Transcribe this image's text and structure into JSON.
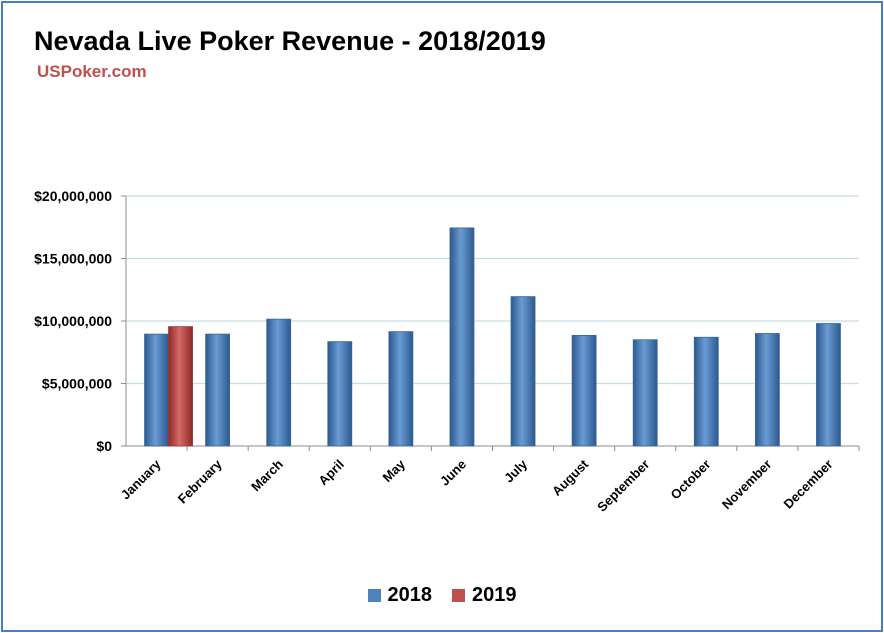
{
  "chart_data": {
    "type": "bar",
    "title": "Nevada Live Poker Revenue - 2018/2019",
    "subtitle": "USPoker.com",
    "xlabel": "",
    "ylabel": "",
    "categories": [
      "January",
      "February",
      "March",
      "April",
      "May",
      "June",
      "July",
      "August",
      "September",
      "October",
      "November",
      "December"
    ],
    "series": [
      {
        "name": "2018",
        "color": "#4f81bd",
        "values": [
          8950000,
          8950000,
          10150000,
          8350000,
          9150000,
          17450000,
          11950000,
          8850000,
          8500000,
          8700000,
          9000000,
          9800000
        ]
      },
      {
        "name": "2019",
        "color": "#c0504d",
        "values": [
          9550000,
          null,
          null,
          null,
          null,
          null,
          null,
          null,
          null,
          null,
          null,
          null
        ]
      }
    ],
    "ylim": [
      0,
      20000000
    ],
    "yticks": [
      0,
      5000000,
      10000000,
      15000000,
      20000000
    ],
    "ytick_labels": [
      "$0",
      "$5,000,000",
      "$10,000,000",
      "$15,000,000",
      "$20,000,000"
    ],
    "grid": true,
    "legend_position": "bottom"
  }
}
